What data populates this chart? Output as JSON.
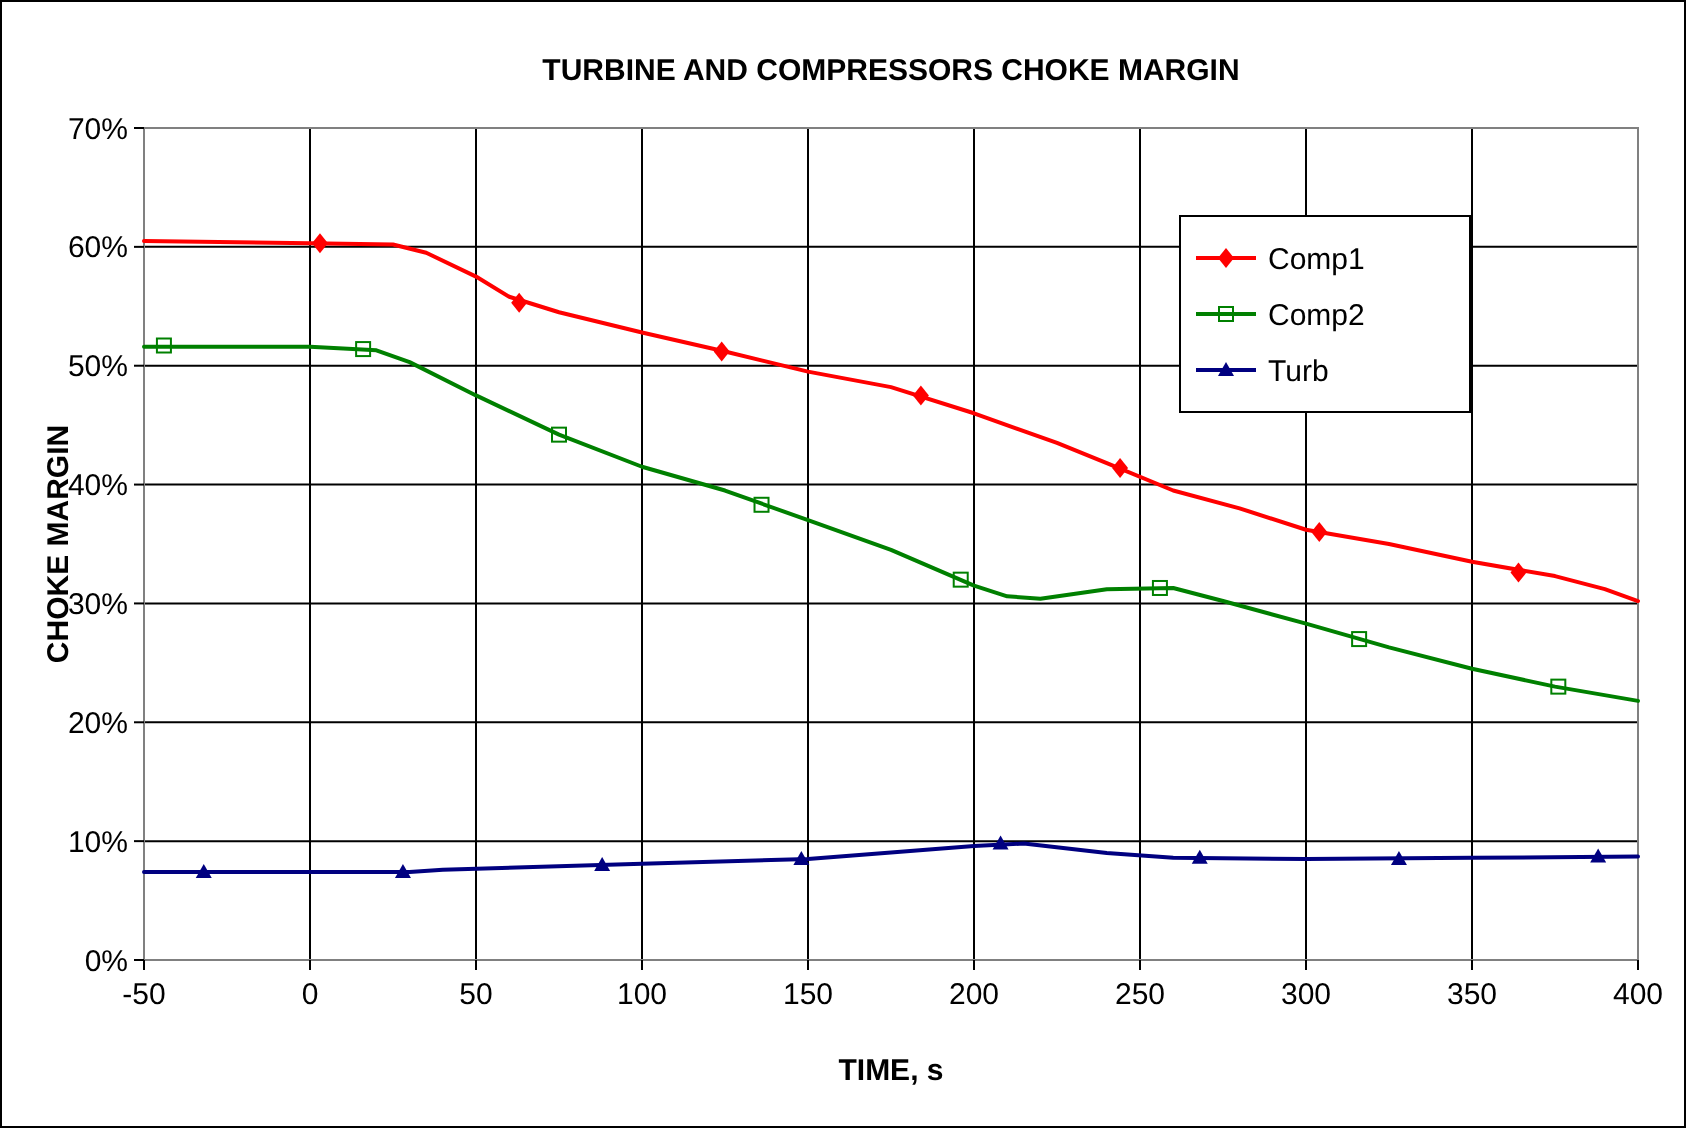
{
  "chart_data": {
    "type": "line",
    "title": "TURBINE AND COMPRESSORS CHOKE MARGIN",
    "xlabel": "TIME, s",
    "ylabel": "CHOKE MARGIN",
    "xlim": [
      -50,
      400
    ],
    "xticks": [
      -50,
      0,
      50,
      100,
      150,
      200,
      250,
      300,
      350,
      400
    ],
    "ylim": [
      0,
      70
    ],
    "yticks": [
      {
        "value": 0,
        "label": "0%"
      },
      {
        "value": 10,
        "label": "10%"
      },
      {
        "value": 20,
        "label": "20%"
      },
      {
        "value": 30,
        "label": "30%"
      },
      {
        "value": 40,
        "label": "40%"
      },
      {
        "value": 50,
        "label": "50%"
      },
      {
        "value": 60,
        "label": "60%"
      },
      {
        "value": 70,
        "label": "70%"
      }
    ],
    "grid": true,
    "legend": "top right",
    "line_style": "solid",
    "series": [
      {
        "name": "Comp1",
        "color": "#ff0000",
        "marker": "none",
        "x": [
          -50,
          0,
          25,
          35,
          50,
          60,
          75,
          100,
          125,
          150,
          175,
          200,
          225,
          240,
          260,
          280,
          300,
          325,
          350,
          375,
          390,
          400
        ],
        "values": [
          60.5,
          60.3,
          60.2,
          59.5,
          57.5,
          55.8,
          54.5,
          52.8,
          51.2,
          49.5,
          48.2,
          46.0,
          43.5,
          41.8,
          39.5,
          38.0,
          36.2,
          35.0,
          33.5,
          32.3,
          31.2,
          30.2
        ]
      },
      {
        "type": "scatter",
        "color": "#ff0000",
        "marker": "diamond",
        "x": [
          3,
          63,
          124,
          184,
          244,
          304,
          364
        ],
        "values": [
          60.3,
          55.3,
          51.2,
          47.5,
          41.4,
          36.0,
          32.6
        ]
      },
      {
        "name": "Comp2",
        "color": "#008000",
        "marker": "none",
        "x": [
          -50,
          0,
          20,
          30,
          50,
          75,
          100,
          125,
          150,
          175,
          200,
          210,
          220,
          240,
          260,
          275,
          300,
          325,
          350,
          375,
          400
        ],
        "values": [
          51.6,
          51.6,
          51.3,
          50.3,
          47.5,
          44.2,
          41.5,
          39.5,
          37.0,
          34.5,
          31.5,
          30.6,
          30.4,
          31.2,
          31.3,
          30.2,
          28.3,
          26.3,
          24.5,
          23.0,
          21.8
        ]
      },
      {
        "type": "scatter",
        "color": "#008000",
        "marker": "square",
        "x": [
          -44,
          16,
          75,
          136,
          196,
          256,
          316,
          376
        ],
        "values": [
          51.7,
          51.4,
          44.2,
          38.3,
          32.0,
          31.3,
          27.0,
          23.0
        ]
      },
      {
        "name": "Turb",
        "color": "#000080",
        "marker": "none",
        "x": [
          -50,
          0,
          30,
          40,
          100,
          150,
          200,
          215,
          240,
          260,
          300,
          350,
          400
        ],
        "values": [
          7.4,
          7.4,
          7.4,
          7.6,
          8.1,
          8.5,
          9.6,
          9.8,
          9.0,
          8.6,
          8.5,
          8.6,
          8.7
        ]
      },
      {
        "type": "scatter",
        "color": "#000080",
        "marker": "triangle",
        "x": [
          -32,
          28,
          88,
          148,
          208,
          268,
          328,
          388
        ],
        "values": [
          7.4,
          7.4,
          8.0,
          8.5,
          9.8,
          8.6,
          8.5,
          8.7
        ]
      }
    ]
  }
}
